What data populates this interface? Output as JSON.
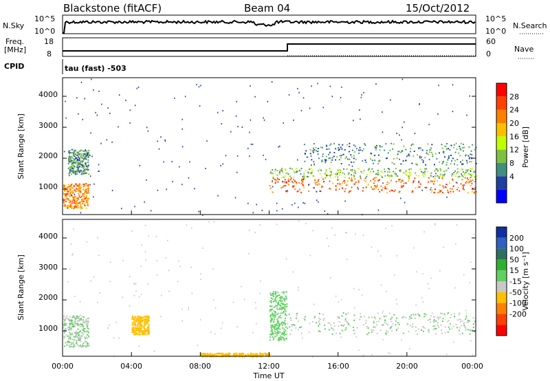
{
  "header": {
    "station": "Blackstone (fitACF)",
    "beam": "Beam 04",
    "date": "15/Oct/2012"
  },
  "noise_panel": {
    "left_label": "N.Sky",
    "left_ticks": [
      "10^5",
      "10^0"
    ],
    "right_label": "N.Search",
    "right_ticks": [
      "10^5",
      "10^0"
    ]
  },
  "freq_panel": {
    "left_label_line1": "Freq.",
    "left_label_line2": "[MHz]",
    "left_ticks": [
      "18",
      "8"
    ],
    "right_label": "Nave",
    "right_ticks": [
      "60",
      "0"
    ]
  },
  "cpid_panel": {
    "label": "CPID",
    "text": "tau (fast) -503"
  },
  "power_colorbar": {
    "label": "Power [dB]",
    "ticks": [
      "28",
      "24",
      "20",
      "16",
      "12",
      "8",
      "4"
    ],
    "colors": [
      "#ff0000",
      "#ff4000",
      "#ff8000",
      "#ffbf00",
      "#c0ff00",
      "#7fc040",
      "#3f8f7f",
      "#2040a0",
      "#0000ff"
    ]
  },
  "velocity_colorbar": {
    "label": "Velocity [m s⁻¹]",
    "ticks": [
      "200",
      "100",
      "50",
      "15",
      "-15",
      "-50",
      "-100",
      "-200"
    ],
    "colors": [
      "#1030a0",
      "#3060c0",
      "#2f6f5f",
      "#30b030",
      "#60d060",
      "#c8c8c8",
      "#ffbf00",
      "#ff8000",
      "#ff4000",
      "#ff0000"
    ]
  },
  "axes": {
    "ylabel": "Slant Range [km]",
    "xlabel": "Time UT",
    "yticks": [
      "1000",
      "2000",
      "3000",
      "4000"
    ],
    "xticks": [
      "00:00",
      "04:00",
      "08:00",
      "12:00",
      "16:00",
      "20:00",
      "00:00"
    ]
  },
  "chart_data": [
    {
      "type": "heatmap",
      "title": "Power [dB]",
      "xlabel": "",
      "ylabel": "Slant Range [km]",
      "xlim_hours": [
        0,
        24
      ],
      "ylim_km": [
        180,
        4600
      ],
      "value_range": [
        0,
        30
      ],
      "note_regions": [
        {
          "t0": 0.0,
          "t1": 1.5,
          "r0": 400,
          "r1": 1200,
          "power": 22
        },
        {
          "t0": 0.3,
          "t1": 1.5,
          "r0": 1500,
          "r1": 2300,
          "power": 8
        },
        {
          "t0": 12.0,
          "t1": 24.0,
          "r0": 900,
          "r1": 1400,
          "power": 24
        },
        {
          "t0": 12.0,
          "t1": 24.0,
          "r0": 1400,
          "r1": 1700,
          "power": 12
        },
        {
          "t0": 14.0,
          "t1": 24.0,
          "r0": 1800,
          "r1": 2500,
          "power": 8
        }
      ]
    },
    {
      "type": "heatmap",
      "title": "Velocity [m s⁻¹]",
      "xlabel": "Time UT",
      "ylabel": "Slant Range [km]",
      "xlim_hours": [
        0,
        24
      ],
      "ylim_km": [
        180,
        4600
      ],
      "value_range": [
        -200,
        200
      ],
      "note_regions": [
        {
          "t0": 0.0,
          "t1": 1.5,
          "r0": 500,
          "r1": 1500,
          "velocity": 0
        },
        {
          "t0": 4.0,
          "t1": 5.0,
          "r0": 900,
          "r1": 1500,
          "velocity": -60
        },
        {
          "t0": 12.0,
          "t1": 13.0,
          "r0": 700,
          "r1": 2300,
          "velocity": 30
        },
        {
          "t0": 13.0,
          "t1": 24.0,
          "r0": 900,
          "r1": 1600,
          "velocity": 0
        },
        {
          "t0": 8.0,
          "t1": 12.0,
          "r0": 180,
          "r1": 300,
          "velocity": -60
        }
      ]
    }
  ]
}
